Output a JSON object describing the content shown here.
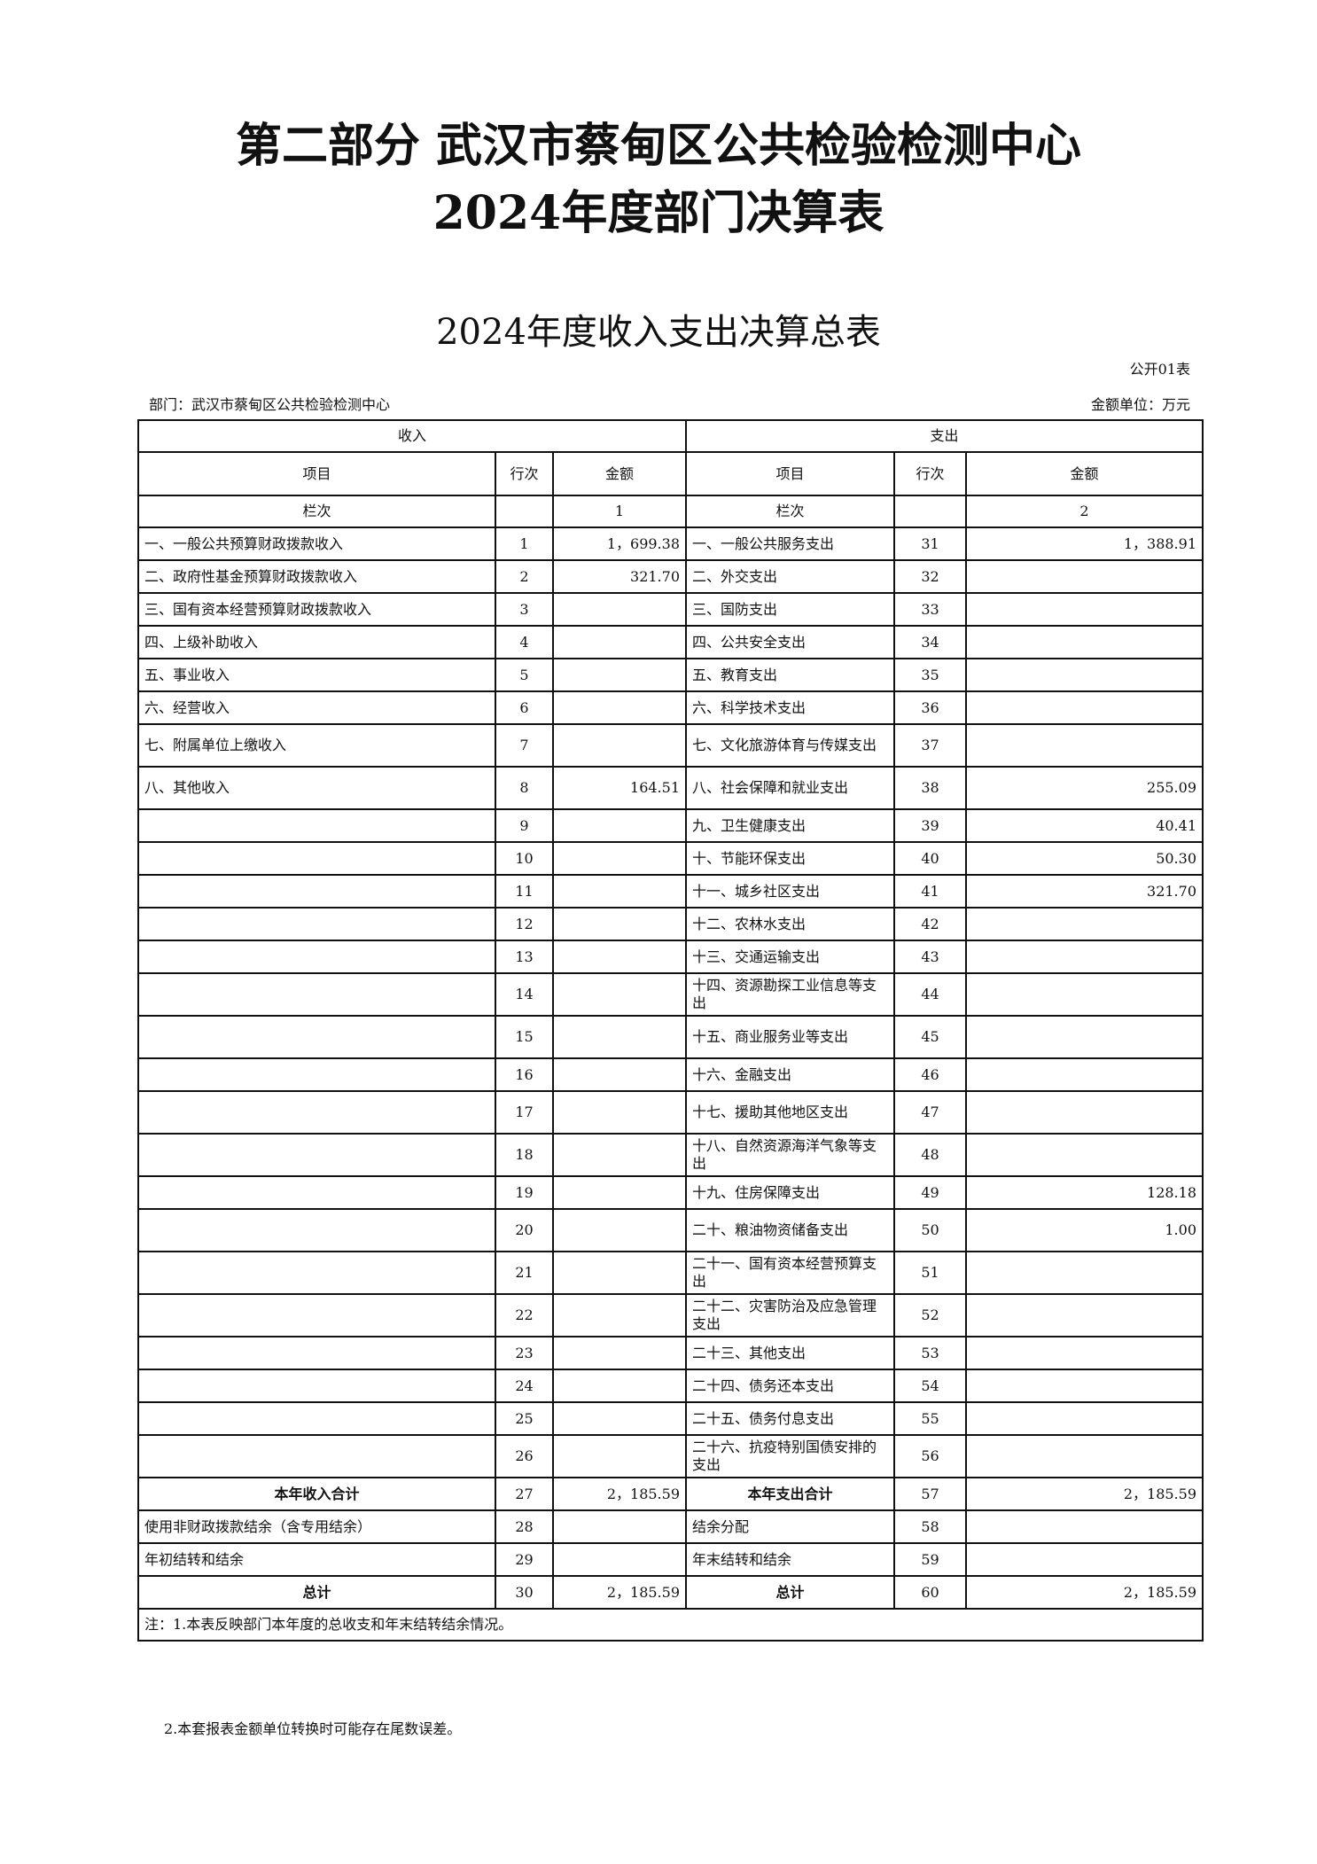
{
  "title_line1": "第二部分  武汉市蔡甸区公共检验检测中心",
  "title_line2": "2024年度部门决算表",
  "table_title": "2024年度收入支出决算总表",
  "table_code": "公开01表",
  "department": "部门：武汉市蔡甸区公共检验检测中心",
  "unit": "金额单位：万元",
  "header": {
    "income": "收入",
    "expense": "支出",
    "item": "项目",
    "line_income": "行次",
    "amount": "金额",
    "line_expense": "行次",
    "col_label": "栏次",
    "col1": "1",
    "col2": "2"
  },
  "rows": [
    [
      "一、一般公共预算财政拨款收入",
      "1",
      "1，699.38",
      "一、一般公共服务支出",
      "31",
      "1，388.91"
    ],
    [
      "二、政府性基金预算财政拨款收入",
      "2",
      "321.70",
      "二、外交支出",
      "32",
      ""
    ],
    [
      "三、国有资本经营预算财政拨款收入",
      "3",
      "",
      "三、国防支出",
      "33",
      ""
    ],
    [
      "四、上级补助收入",
      "4",
      "",
      "四、公共安全支出",
      "34",
      ""
    ],
    [
      "五、事业收入",
      "5",
      "",
      "五、教育支出",
      "35",
      ""
    ],
    [
      "六、经营收入",
      "6",
      "",
      "六、科学技术支出",
      "36",
      ""
    ],
    [
      "七、附属单位上缴收入",
      "7",
      "",
      "七、文化旅游体育与传媒支出",
      "37",
      ""
    ],
    [
      "八、其他收入",
      "8",
      "164.51",
      "八、社会保障和就业支出",
      "38",
      "255.09"
    ],
    [
      "",
      "9",
      "",
      "九、卫生健康支出",
      "39",
      "40.41"
    ],
    [
      "",
      "10",
      "",
      "十、节能环保支出",
      "40",
      "50.30"
    ],
    [
      "",
      "11",
      "",
      "十一、城乡社区支出",
      "41",
      "321.70"
    ],
    [
      "",
      "12",
      "",
      "十二、农林水支出",
      "42",
      ""
    ],
    [
      "",
      "13",
      "",
      "十三、交通运输支出",
      "43",
      ""
    ],
    [
      "",
      "14",
      "",
      "十四、资源勘探工业信息等支出",
      "44",
      ""
    ],
    [
      "",
      "15",
      "",
      "十五、商业服务业等支出",
      "45",
      ""
    ],
    [
      "",
      "16",
      "",
      "十六、金融支出",
      "46",
      ""
    ],
    [
      "",
      "17",
      "",
      "十七、援助其他地区支出",
      "47",
      ""
    ],
    [
      "",
      "18",
      "",
      "十八、自然资源海洋气象等支出",
      "48",
      ""
    ],
    [
      "",
      "19",
      "",
      "十九、住房保障支出",
      "49",
      "128.18"
    ],
    [
      "",
      "20",
      "",
      "二十、粮油物资储备支出",
      "50",
      "1.00"
    ],
    [
      "",
      "21",
      "",
      "二十一、国有资本经营预算支出",
      "51",
      ""
    ],
    [
      "",
      "22",
      "",
      "二十二、灾害防治及应急管理支出",
      "52",
      ""
    ],
    [
      "",
      "23",
      "",
      "二十三、其他支出",
      "53",
      ""
    ],
    [
      "",
      "24",
      "",
      "二十四、债务还本支出",
      "54",
      ""
    ],
    [
      "",
      "25",
      "",
      "二十五、债务付息支出",
      "55",
      ""
    ],
    [
      "",
      "26",
      "",
      "二十六、抗疫特别国债安排的支出",
      "56",
      ""
    ],
    [
      "本年收入合计",
      "27",
      "2，185.59",
      "本年支出合计",
      "57",
      "2，185.59"
    ],
    [
      "使用非财政拨款结余（含专用结余）",
      "28",
      "",
      "结余分配",
      "58",
      ""
    ],
    [
      "年初结转和结余",
      "29",
      "",
      "年末结转和结余",
      "59",
      ""
    ],
    [
      "总计",
      "30",
      "2，185.59",
      "总计",
      "60",
      "2，185.59"
    ]
  ],
  "notes": [
    "注：1.本表反映部门本年度的总收支和年末结转结余情况。",
    "2.本套报表金额单位转换时可能存在尾数误差。"
  ]
}
